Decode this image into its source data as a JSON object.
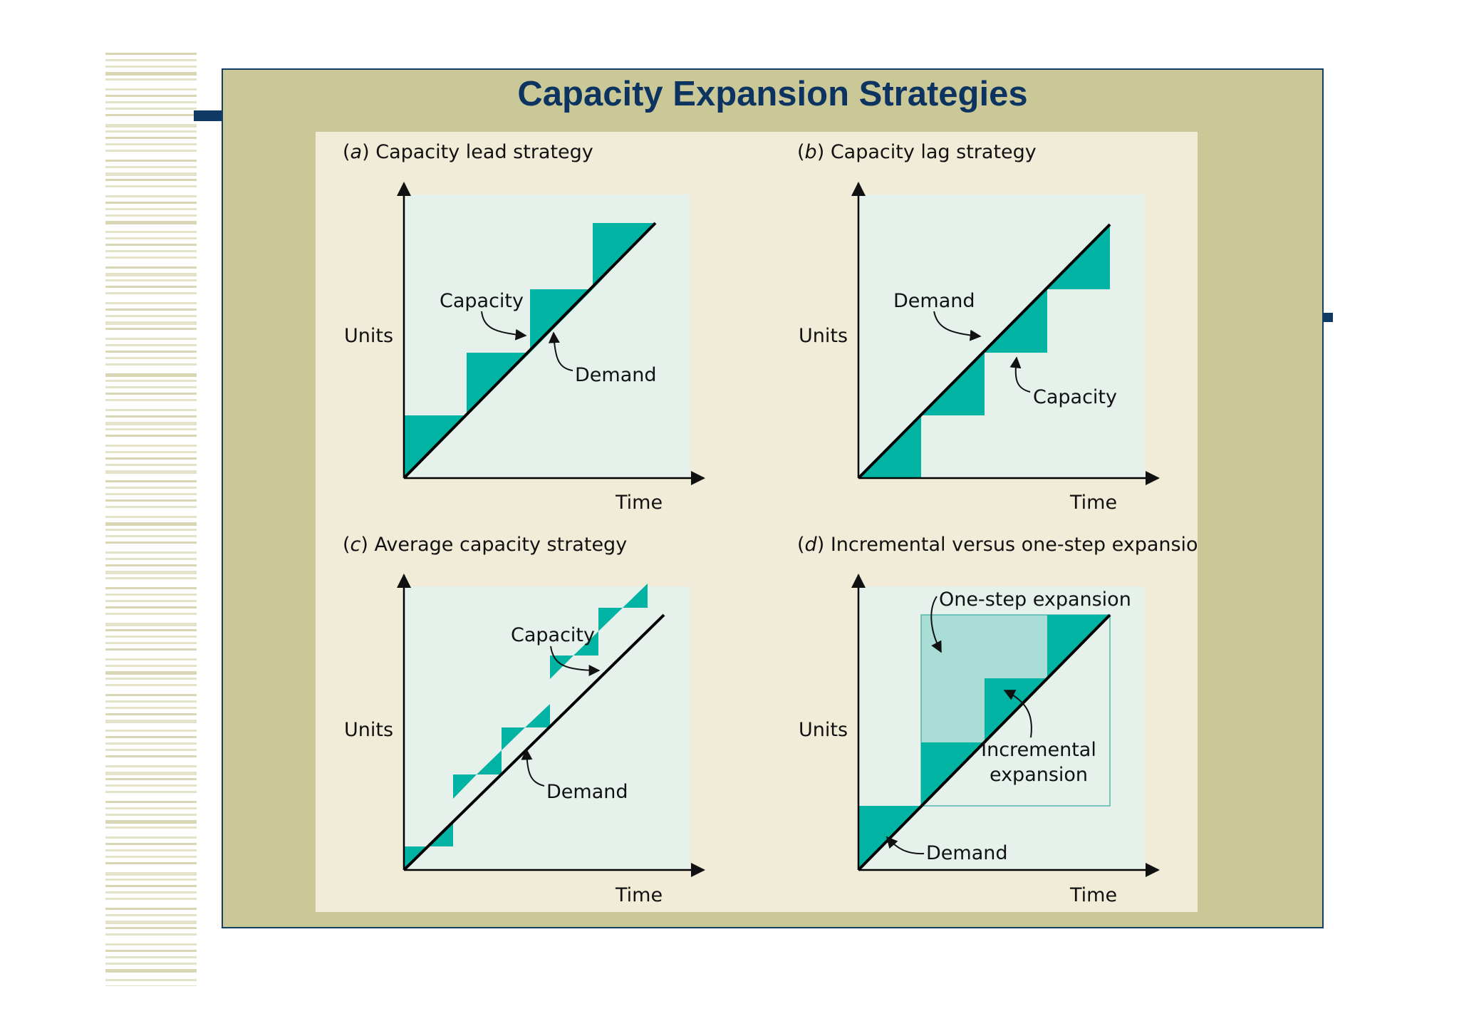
{
  "title": "Capacity Expansion Strategies",
  "colors": {
    "slide_bg": "#cbc898",
    "figure_bg": "#f1ecd8",
    "plot_bg": "#e5f1ea",
    "capacity_fill": "#00b3a3",
    "one_step_fill": "#a9ddd5",
    "title_color": "#0d3461"
  },
  "panels": [
    {
      "letter": "a",
      "caption": "Capacity lead strategy",
      "y_label": "Units",
      "x_label": "Time",
      "labels": {
        "capacity": "Capacity",
        "demand": "Demand"
      }
    },
    {
      "letter": "b",
      "caption": "Capacity lag strategy",
      "y_label": "Units",
      "x_label": "Time",
      "labels": {
        "demand": "Demand",
        "capacity": "Capacity"
      }
    },
    {
      "letter": "c",
      "caption": "Average capacity strategy",
      "y_label": "Units",
      "x_label": "Time",
      "labels": {
        "capacity": "Capacity",
        "demand": "Demand"
      }
    },
    {
      "letter": "d",
      "caption": "Incremental versus one-step expansion",
      "y_label": "Units",
      "x_label": "Time",
      "labels": {
        "one_step": "One-step expansion",
        "incremental_1": "Incremental",
        "incremental_2": "expansion",
        "demand": "Demand"
      }
    }
  ]
}
